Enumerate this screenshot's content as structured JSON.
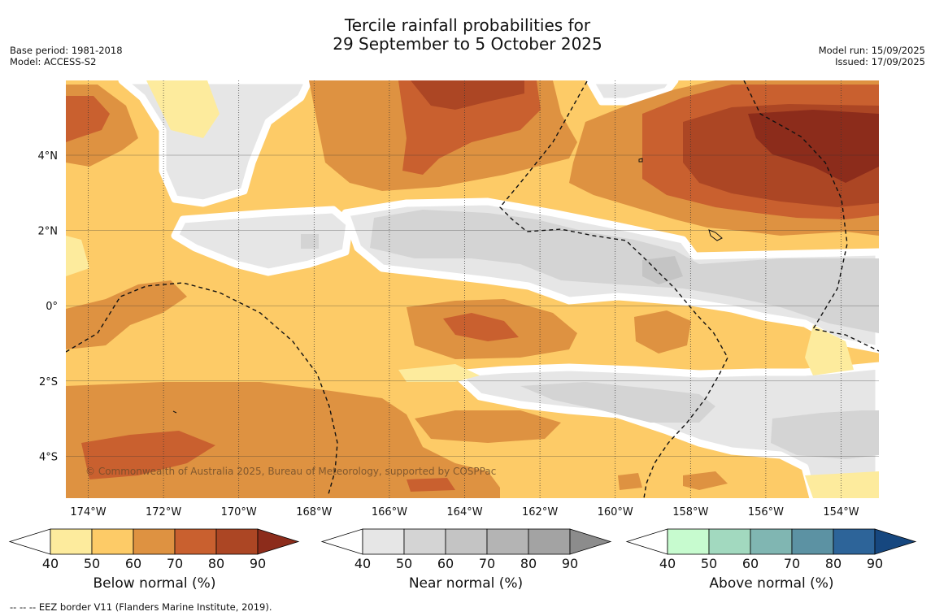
{
  "header": {
    "title_line1": "Tercile rainfall probabilities for",
    "title_line2": "29 September to 5 October 2025",
    "base_period": "Base period: 1981-2018",
    "model": "Model: ACCESS-S2",
    "model_run": "Model run: 15/09/2025",
    "issued": "Issued: 17/09/2025"
  },
  "map": {
    "lon_ticks": [
      "174°W",
      "172°W",
      "170°W",
      "168°W",
      "166°W",
      "164°W",
      "162°W",
      "160°W",
      "158°W",
      "156°W",
      "154°W"
    ],
    "lat_ticks": [
      "4°N",
      "2°N",
      "0°",
      "2°S",
      "4°S"
    ],
    "copyright": "© Commonwealth of Australia 2025, Bureau of Meteorology, supported by COSPPac"
  },
  "colorbars": [
    {
      "label": "Below normal (%)",
      "ticks": [
        "40",
        "50",
        "60",
        "70",
        "80",
        "90"
      ],
      "colors": [
        "#fdeb9d",
        "#fdcb67",
        "#de9241",
        "#c9602f",
        "#ac4624",
        "#8c2c1b"
      ]
    },
    {
      "label": "Near normal (%)",
      "ticks": [
        "40",
        "50",
        "60",
        "70",
        "80",
        "90"
      ],
      "colors": [
        "#e6e6e6",
        "#d4d4d4",
        "#c4c4c4",
        "#b4b4b4",
        "#a3a3a3",
        "#8c8c8c"
      ]
    },
    {
      "label": "Above normal (%)",
      "ticks": [
        "40",
        "50",
        "60",
        "70",
        "80",
        "90"
      ],
      "colors": [
        "#c7fbcf",
        "#a2d9bf",
        "#80b6b2",
        "#5c92a3",
        "#2d6499",
        "#16477f"
      ]
    }
  ],
  "footnote": "--  --  -- EEZ border V11 (Flanders Marine Institute, 2019)."
}
